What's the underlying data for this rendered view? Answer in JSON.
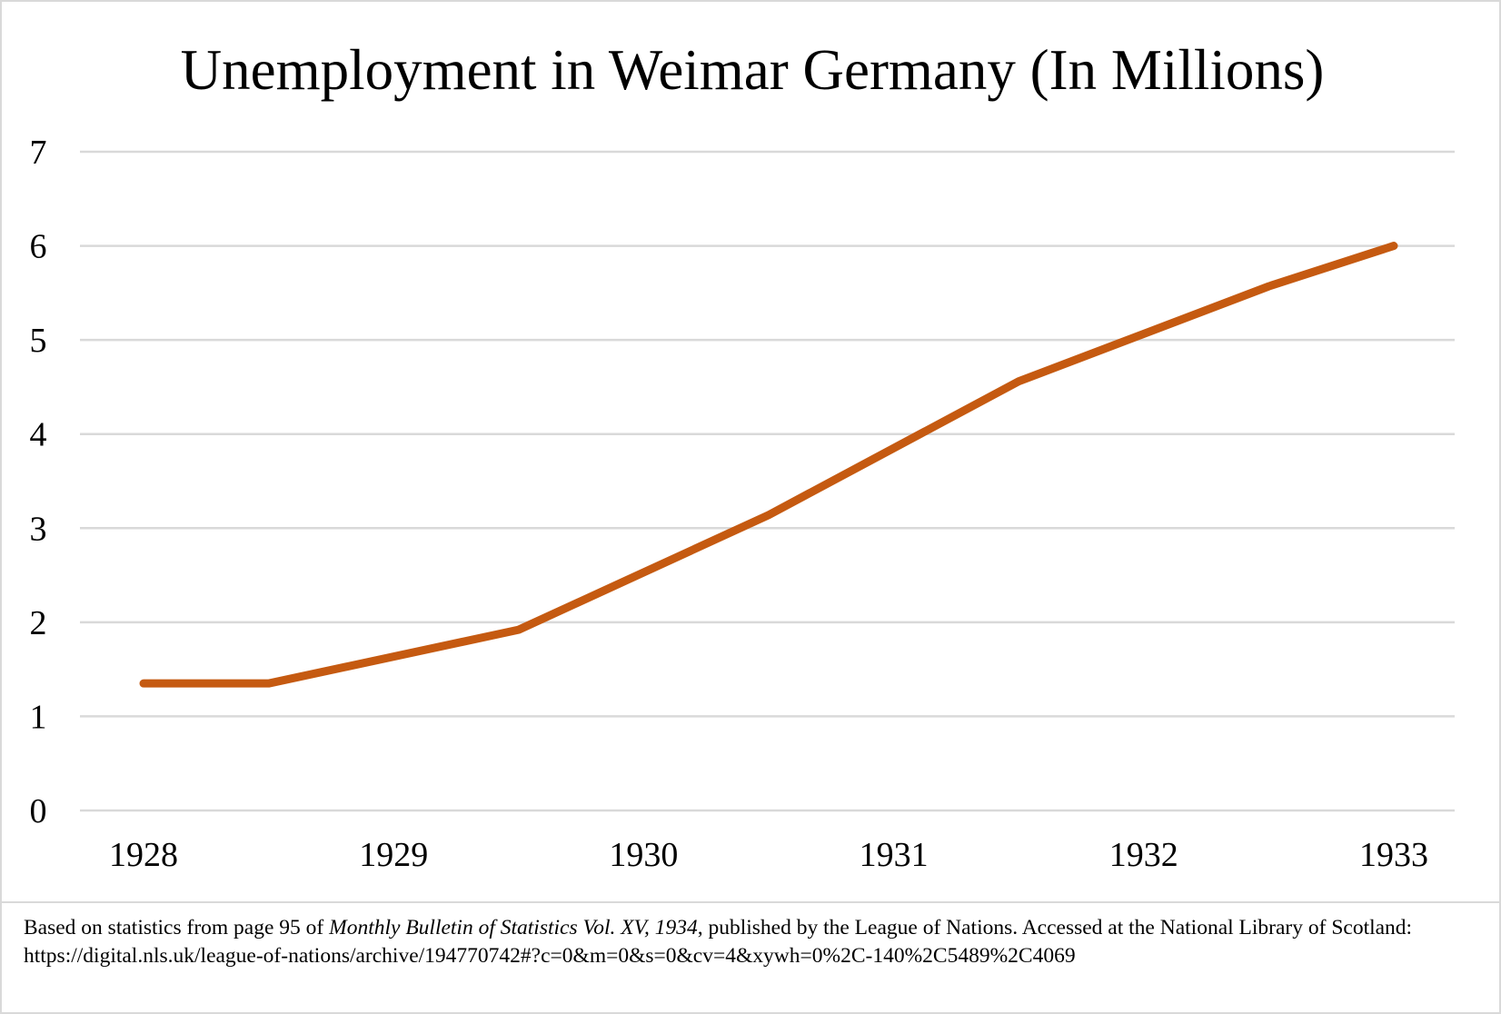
{
  "chart_data": {
    "type": "line",
    "title": "Unemployment in Weimar Germany (In Millions)",
    "xlabel": "",
    "ylabel": "",
    "x_tick_labels": [
      "1928",
      "1929",
      "1930",
      "1931",
      "1932",
      "1933"
    ],
    "y_tick_labels": [
      "0",
      "1",
      "2",
      "3",
      "4",
      "5",
      "6",
      "7"
    ],
    "ylim": [
      0,
      7
    ],
    "xlim": [
      1928,
      1933
    ],
    "grid": true,
    "legend": "none",
    "series": [
      {
        "color": "#c55a11",
        "x": [
          1928,
          1928.5,
          1929.5,
          1930.5,
          1931.5,
          1932.5,
          1933
        ],
        "values": [
          1.35,
          1.35,
          1.92,
          3.14,
          4.56,
          5.57,
          6.0
        ]
      }
    ]
  },
  "footer": {
    "prefix": "Based on statistics from page 95 of ",
    "source_title": "Monthly Bulletin of Statistics Vol. XV, 1934",
    "suffix": ", published by the League of Nations. Accessed at the National Library of Scotland: https://digital.nls.uk/league-of-nations/archive/194770742#?c=0&m=0&s=0&cv=4&xywh=0%2C-140%2C5489%2C4069"
  }
}
